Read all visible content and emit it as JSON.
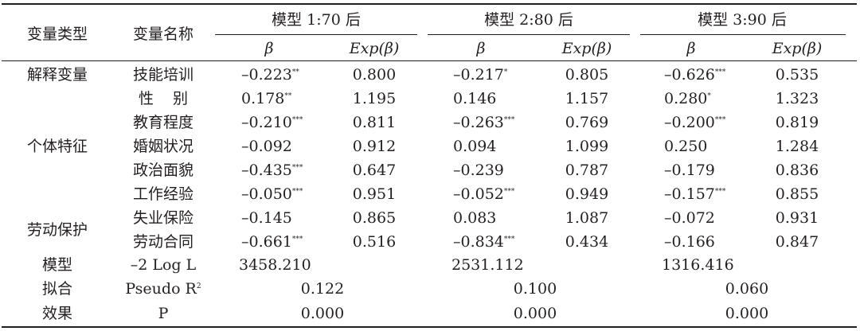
{
  "header": {
    "var_type": "变量类型",
    "var_name": "变量名称",
    "groups": [
      "模型 1:70 后",
      "模型 2:80 后",
      "模型 3:90 后"
    ],
    "beta": "β",
    "exp": "Exp(β)"
  },
  "rows": [
    {
      "type": "解释变量",
      "name": "技能培训",
      "m1b": "–0.223",
      "m1s": "**",
      "m1e": "0.800",
      "m2b": "–0.217",
      "m2s": "*",
      "m2e": "0.805",
      "m3b": "–0.626",
      "m3s": "***",
      "m3e": "0.535"
    },
    {
      "type": "",
      "name": "性别",
      "m1b": "0.178",
      "m1s": "**",
      "m1e": "1.195",
      "m2b": "0.146",
      "m2s": "",
      "m2e": "1.157",
      "m3b": "0.280",
      "m3s": "*",
      "m3e": "1.323"
    },
    {
      "type": "",
      "name": "教育程度",
      "m1b": "–0.210",
      "m1s": "***",
      "m1e": "0.811",
      "m2b": "–0.263",
      "m2s": "***",
      "m2e": "0.769",
      "m3b": "–0.200",
      "m3s": "***",
      "m3e": "0.819"
    },
    {
      "type": "个体特征",
      "name": "婚姻状况",
      "m1b": "–0.092",
      "m1s": "",
      "m1e": "0.912",
      "m2b": "0.094",
      "m2s": "",
      "m2e": "1.099",
      "m3b": "0.250",
      "m3s": "",
      "m3e": "1.284"
    },
    {
      "type": "",
      "name": "政治面貌",
      "m1b": "–0.435",
      "m1s": "***",
      "m1e": "0.647",
      "m2b": "–0.239",
      "m2s": "",
      "m2e": "0.787",
      "m3b": "–0.179",
      "m3s": "",
      "m3e": "0.836"
    },
    {
      "type": "",
      "name": "工作经验",
      "m1b": "–0.050",
      "m1s": "***",
      "m1e": "0.951",
      "m2b": "–0.052",
      "m2s": "***",
      "m2e": "0.949",
      "m3b": "–0.157",
      "m3s": "***",
      "m3e": "0.855"
    },
    {
      "type": "",
      "name": "失业保险",
      "m1b": "–0.145",
      "m1s": "",
      "m1e": "0.865",
      "m2b": "0.083",
      "m2s": "",
      "m2e": "1.087",
      "m3b": "–0.072",
      "m3s": "",
      "m3e": "0.931"
    },
    {
      "type": "劳动保护",
      "name": "劳动合同",
      "m1b": "–0.661",
      "m1s": "***",
      "m1e": "0.516",
      "m2b": "–0.834",
      "m2s": "***",
      "m2e": "0.434",
      "m3b": "–0.166",
      "m3s": "",
      "m3e": "0.847"
    }
  ],
  "fit": {
    "label_a": "模型",
    "label_b": "拟合",
    "label_c": "效果",
    "loglik_label": "–2 Log L",
    "loglik": [
      "3458.210",
      "2531.112",
      "1316.416"
    ],
    "pseudo_label": "Pseudo R",
    "pseudo_sup": "2",
    "pseudo": [
      "0.122",
      "0.100",
      "0.060"
    ],
    "p_label": "P",
    "p": [
      "0.000",
      "0.000",
      "0.000"
    ]
  }
}
